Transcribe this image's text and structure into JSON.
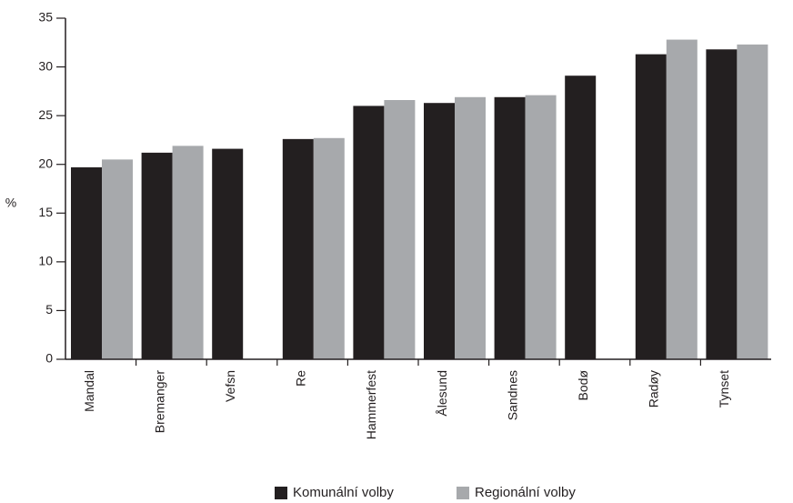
{
  "chart_data": {
    "type": "bar",
    "ylabel": "%",
    "xlabel": "",
    "ylim": [
      0,
      35
    ],
    "yticks": [
      0,
      5,
      10,
      15,
      20,
      25,
      30,
      35
    ],
    "categories": [
      "Mandal",
      "Bremanger",
      "Vefsn",
      "Re",
      "Hammerfest",
      "Ålesund",
      "Sandnes",
      "Bodø",
      "Radøy",
      "Tynset"
    ],
    "series": [
      {
        "name": "Komunální volby",
        "color": "#231f20",
        "values": [
          19.7,
          21.2,
          21.6,
          22.6,
          26.0,
          26.3,
          26.9,
          29.1,
          31.3,
          31.8
        ]
      },
      {
        "name": "Regionální volby",
        "color": "#a7a9ac",
        "values": [
          20.5,
          21.9,
          null,
          22.7,
          26.6,
          26.9,
          27.1,
          null,
          32.8,
          32.3
        ]
      }
    ],
    "grid": false,
    "legend": "bottom"
  }
}
